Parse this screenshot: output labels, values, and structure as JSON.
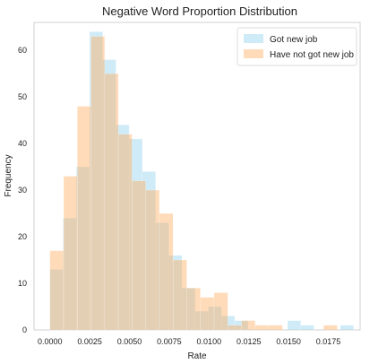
{
  "chart_data": {
    "type": "bar",
    "title": "Negative Word Proportion Distribution",
    "xlabel": "Rate",
    "ylabel": "Frequency",
    "xlim": [
      -0.001,
      0.0195
    ],
    "ylim": [
      0,
      66
    ],
    "x_ticks": [
      0.0,
      0.0025,
      0.005,
      0.0075,
      0.01,
      0.0125,
      0.015,
      0.0175
    ],
    "x_tick_labels": [
      "0.0000",
      "0.0025",
      "0.0050",
      "0.0075",
      "0.0100",
      "0.0125",
      "0.0150",
      "0.0175"
    ],
    "y_ticks": [
      0,
      10,
      20,
      30,
      40,
      50,
      60
    ],
    "y_tick_labels": [
      "0",
      "10",
      "20",
      "30",
      "40",
      "50",
      "60"
    ],
    "grid": false,
    "legend_position": "top-right",
    "series": [
      {
        "name": "Got new job",
        "color": "#87ceeb",
        "opacity": 0.4,
        "bin_edges": [
          0.0,
          0.00083,
          0.00166,
          0.00249,
          0.00332,
          0.00415,
          0.00498,
          0.00581,
          0.00664,
          0.00747,
          0.0083,
          0.00913,
          0.00996,
          0.01079,
          0.01162,
          0.01245,
          0.01328,
          0.01411,
          0.01494,
          0.01577,
          0.0166,
          0.01743,
          0.01826,
          0.01909
        ],
        "counts": [
          13,
          24,
          35,
          64,
          58,
          44,
          41,
          34,
          23,
          16,
          9,
          4,
          5,
          3,
          2,
          0,
          0,
          0,
          2,
          1,
          0,
          0,
          1
        ]
      },
      {
        "name": "Have not got new job",
        "color": "#ffa54f",
        "opacity": 0.4,
        "bin_edges": [
          0.0,
          0.00086,
          0.00172,
          0.00258,
          0.00344,
          0.0043,
          0.00516,
          0.00602,
          0.00688,
          0.00774,
          0.0086,
          0.00946,
          0.01032,
          0.01118,
          0.01204,
          0.0129,
          0.01376,
          0.01462,
          0.01548,
          0.01634,
          0.0172,
          0.01806
        ],
        "counts": [
          17,
          33,
          48,
          63,
          55,
          42,
          32,
          30,
          25,
          15,
          9,
          7,
          8,
          1,
          2,
          1,
          1,
          0,
          0,
          0,
          1
        ]
      }
    ]
  }
}
